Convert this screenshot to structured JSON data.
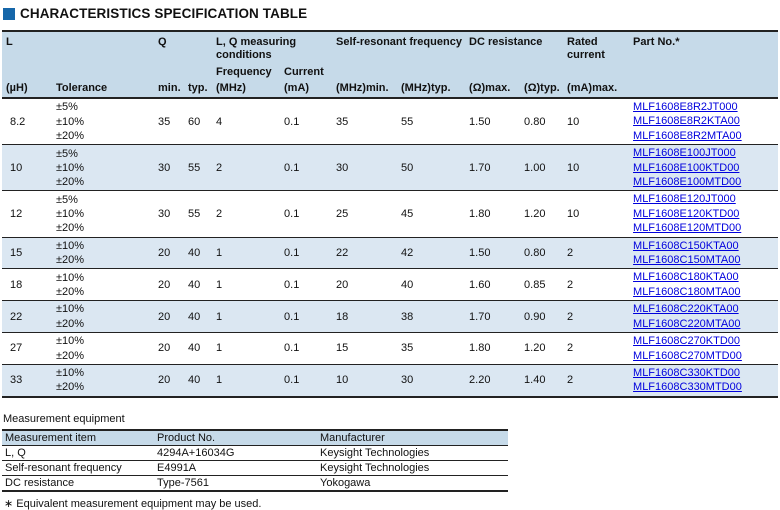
{
  "title": {
    "text": "CHARACTERISTICS SPECIFICATION TABLE"
  },
  "colors": {
    "accent_square": "#1566a9",
    "table_header_bg": "#c6dae9",
    "row_stripe": "#dbe7f2",
    "link": "#0000dd",
    "border": "#222222"
  },
  "spec_table": {
    "header": {
      "l": "L",
      "q": "Q",
      "lq_conditions": "L, Q measuring conditions",
      "srf": "Self-resonant frequency",
      "dcr": "DC resistance",
      "rated": "Rated current",
      "part": "Part No.*",
      "frequency": "Frequency",
      "current": "Current",
      "uh": "(µH)",
      "tolerance": "Tolerance",
      "min": "min.",
      "typ": "typ.",
      "mhz": "(MHz)",
      "ma": "(mA)",
      "mhz_min": "(MHz)min.",
      "mhz_typ": "(MHz)typ.",
      "ohm_max": "(Ω)max.",
      "ohm_typ": "(Ω)typ.",
      "ma_max": "(mA)max."
    },
    "rows": [
      {
        "l": "8.2",
        "tolerances": [
          "±5%",
          "±10%",
          "±20%"
        ],
        "q_min": "35",
        "q_typ": "60",
        "freq_mhz": "4",
        "current_ma": "0.1",
        "srf_min_mhz": "35",
        "srf_typ_mhz": "55",
        "dcr_max_ohm": "1.50",
        "dcr_typ_ohm": "0.80",
        "rated_ma": "10",
        "part_numbers": [
          "MLF1608E8R2JT000",
          "MLF1608E8R2KTA00",
          "MLF1608E8R2MTA00"
        ]
      },
      {
        "l": "10",
        "tolerances": [
          "±5%",
          "±10%",
          "±20%"
        ],
        "q_min": "30",
        "q_typ": "55",
        "freq_mhz": "2",
        "current_ma": "0.1",
        "srf_min_mhz": "30",
        "srf_typ_mhz": "50",
        "dcr_max_ohm": "1.70",
        "dcr_typ_ohm": "1.00",
        "rated_ma": "10",
        "part_numbers": [
          "MLF1608E100JT000",
          "MLF1608E100KTD00",
          "MLF1608E100MTD00"
        ]
      },
      {
        "l": "12",
        "tolerances": [
          "±5%",
          "±10%",
          "±20%"
        ],
        "q_min": "30",
        "q_typ": "55",
        "freq_mhz": "2",
        "current_ma": "0.1",
        "srf_min_mhz": "25",
        "srf_typ_mhz": "45",
        "dcr_max_ohm": "1.80",
        "dcr_typ_ohm": "1.20",
        "rated_ma": "10",
        "part_numbers": [
          "MLF1608E120JT000",
          "MLF1608E120KTD00",
          "MLF1608E120MTD00"
        ]
      },
      {
        "l": "15",
        "tolerances": [
          "±10%",
          "±20%"
        ],
        "q_min": "20",
        "q_typ": "40",
        "freq_mhz": "1",
        "current_ma": "0.1",
        "srf_min_mhz": "22",
        "srf_typ_mhz": "42",
        "dcr_max_ohm": "1.50",
        "dcr_typ_ohm": "0.80",
        "rated_ma": "2",
        "part_numbers": [
          "MLF1608C150KTA00",
          "MLF1608C150MTA00"
        ]
      },
      {
        "l": "18",
        "tolerances": [
          "±10%",
          "±20%"
        ],
        "q_min": "20",
        "q_typ": "40",
        "freq_mhz": "1",
        "current_ma": "0.1",
        "srf_min_mhz": "20",
        "srf_typ_mhz": "40",
        "dcr_max_ohm": "1.60",
        "dcr_typ_ohm": "0.85",
        "rated_ma": "2",
        "part_numbers": [
          "MLF1608C180KTA00",
          "MLF1608C180MTA00"
        ]
      },
      {
        "l": "22",
        "tolerances": [
          "±10%",
          "±20%"
        ],
        "q_min": "20",
        "q_typ": "40",
        "freq_mhz": "1",
        "current_ma": "0.1",
        "srf_min_mhz": "18",
        "srf_typ_mhz": "38",
        "dcr_max_ohm": "1.70",
        "dcr_typ_ohm": "0.90",
        "rated_ma": "2",
        "part_numbers": [
          "MLF1608C220KTA00",
          "MLF1608C220MTA00"
        ]
      },
      {
        "l": "27",
        "tolerances": [
          "±10%",
          "±20%"
        ],
        "q_min": "20",
        "q_typ": "40",
        "freq_mhz": "1",
        "current_ma": "0.1",
        "srf_min_mhz": "15",
        "srf_typ_mhz": "35",
        "dcr_max_ohm": "1.80",
        "dcr_typ_ohm": "1.20",
        "rated_ma": "2",
        "part_numbers": [
          "MLF1608C270KTD00",
          "MLF1608C270MTD00"
        ]
      },
      {
        "l": "33",
        "tolerances": [
          "±10%",
          "±20%"
        ],
        "q_min": "20",
        "q_typ": "40",
        "freq_mhz": "1",
        "current_ma": "0.1",
        "srf_min_mhz": "10",
        "srf_typ_mhz": "30",
        "dcr_max_ohm": "2.20",
        "dcr_typ_ohm": "1.40",
        "rated_ma": "2",
        "part_numbers": [
          "MLF1608C330KTD00",
          "MLF1608C330MTD00"
        ]
      }
    ]
  },
  "measurement": {
    "label": "Measurement equipment",
    "columns": [
      "Measurement item",
      "Product No.",
      "Manufacturer"
    ],
    "rows": [
      [
        "L, Q",
        "4294A+16034G",
        "Keysight Technologies"
      ],
      [
        "Self-resonant frequency",
        "E4991A",
        "Keysight Technologies"
      ],
      [
        "DC resistance",
        "Type-7561",
        "Yokogawa"
      ]
    ],
    "note": "∗ Equivalent measurement equipment may be used."
  }
}
